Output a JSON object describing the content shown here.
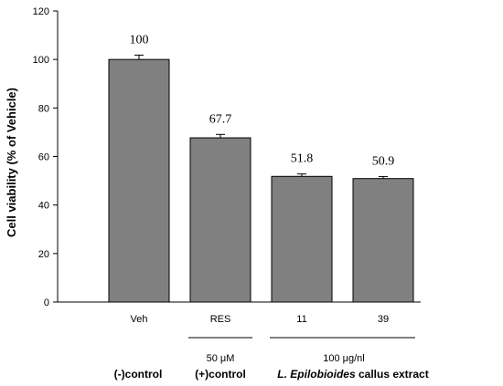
{
  "chart_data": {
    "type": "bar",
    "categories": [
      "Veh",
      "RES",
      "11",
      "39"
    ],
    "values": [
      100,
      67.7,
      51.8,
      50.9
    ],
    "error": [
      1.8,
      1.4,
      1.0,
      0.8
    ],
    "data_labels": [
      "100",
      "67.7",
      "51.8",
      "50.9"
    ],
    "ylabel": "Cell viability (% of Vehicle)",
    "ylim": [
      0,
      120
    ],
    "yticks": [
      0,
      20,
      40,
      60,
      80,
      100,
      120
    ],
    "bar_color": "#808080",
    "grid": false,
    "doses": [
      {
        "label": "50 μM",
        "categories": [
          "RES"
        ]
      },
      {
        "label": "100 μg/nl",
        "categories": [
          "11",
          "39"
        ]
      }
    ],
    "groups": {
      "neg": "(-)control",
      "pos": "(+)control",
      "extract_species": "L. Epilobioides",
      "extract_rest": " callus extract"
    }
  }
}
